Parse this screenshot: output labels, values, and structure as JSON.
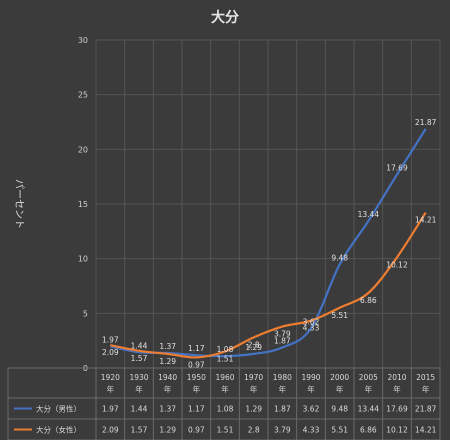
{
  "chart_data": {
    "type": "line",
    "title": "大分",
    "xlabel": "",
    "ylabel": "パーセント",
    "ylim": [
      0,
      30
    ],
    "y_ticks": [
      0,
      5,
      10,
      15,
      20,
      25,
      30
    ],
    "grid": true,
    "legend_placement": "data-table",
    "categories": [
      [
        "1920",
        "年"
      ],
      [
        "1930",
        "年"
      ],
      [
        "1940",
        "年"
      ],
      [
        "1950",
        "年"
      ],
      [
        "1960",
        "年"
      ],
      [
        "1970",
        "年"
      ],
      [
        "1980",
        "年"
      ],
      [
        "1990",
        "年"
      ],
      [
        "2000",
        "年"
      ],
      [
        "2005",
        "年"
      ],
      [
        "2010",
        "年"
      ],
      [
        "2015",
        "年"
      ]
    ],
    "series": [
      {
        "name": "大分（男性）",
        "color": "#4472c4",
        "values": [
          1.97,
          1.44,
          1.37,
          1.17,
          1.08,
          1.29,
          1.87,
          3.62,
          9.48,
          13.44,
          17.69,
          21.87
        ]
      },
      {
        "name": "大分（女性）",
        "color": "#ed7d31",
        "values": [
          2.09,
          1.57,
          1.29,
          0.97,
          1.51,
          2.8,
          3.79,
          4.33,
          5.51,
          6.86,
          10.12,
          14.21
        ]
      }
    ]
  }
}
